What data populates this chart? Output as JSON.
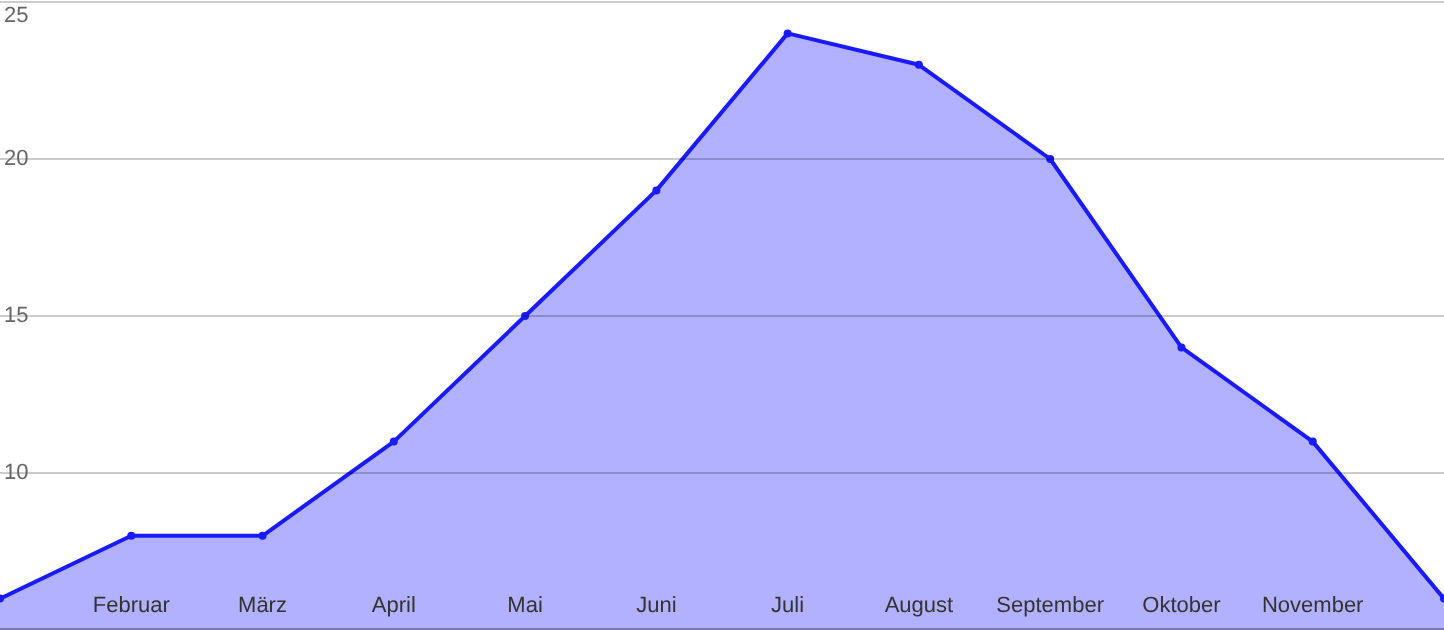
{
  "chart_data": {
    "type": "area",
    "categories": [
      null,
      "Februar",
      "März",
      "April",
      "Mai",
      "Juni",
      "Juli",
      "August",
      "September",
      "Oktober",
      "November",
      null
    ],
    "series": [
      {
        "color": "#1a1aff",
        "values": [
          6,
          8,
          8,
          11,
          15,
          19,
          24,
          23,
          20,
          14,
          11,
          6
        ]
      }
    ],
    "ylim": [
      5,
      25
    ],
    "yticks": [
      10,
      15,
      20,
      25
    ],
    "grid": "y",
    "marker": "circle"
  }
}
